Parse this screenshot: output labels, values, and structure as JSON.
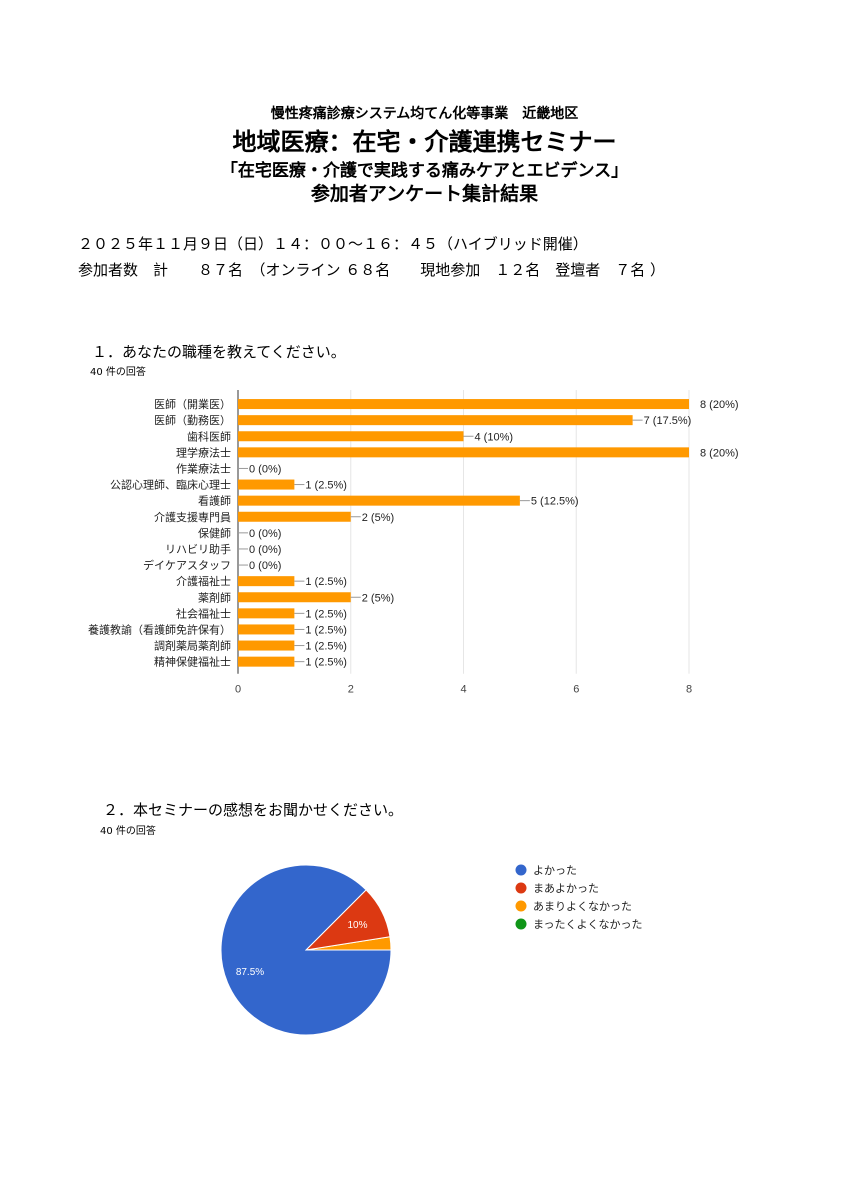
{
  "header": {
    "project": "慢性疼痛診療システム均てん化等事業　近畿地区",
    "title": "地域医療：在宅・介護連携セミナー",
    "subtitle": "「在宅医療・介護で実践する痛みケアとエビデンス」",
    "report": "参加者アンケート集計結果"
  },
  "info": {
    "date": "２０２５年１１月９日（日）１４：００～１６：４５（ハイブリッド開催）",
    "participants": "参加者数　計　　８７名　（オンライン ６８名　　現地参加　１２名　登壇者　７名 ）"
  },
  "q1": {
    "question": "１．あなたの職種を教えてください。",
    "responses": "40 件の回答"
  },
  "q2": {
    "question": "２．本セミナーの感想をお聞かせください。",
    "responses": "40 件の回答"
  },
  "chart_data": [
    {
      "type": "bar",
      "orientation": "horizontal",
      "categories": [
        "医師（開業医）",
        "医師（勤務医）",
        "歯科医師",
        "理学療法士",
        "作業療法士",
        "公認心理師、臨床心理士",
        "看護師",
        "介護支援専門員",
        "保健師",
        "リハビリ助手",
        "デイケアスタッフ",
        "介護福祉士",
        "薬剤師",
        "社会福祉士",
        "養護教諭（看護師免許保有）",
        "調剤薬局薬剤師",
        "精神保健福祉士"
      ],
      "values": [
        8,
        7,
        4,
        8,
        0,
        1,
        5,
        2,
        0,
        0,
        0,
        1,
        2,
        1,
        1,
        1,
        1
      ],
      "labels": [
        "8 (20%)",
        "7 (17.5%)",
        "4 (10%)",
        "8 (20%)",
        "0 (0%)",
        "1 (2.5%)",
        "5 (12.5%)",
        "2 (5%)",
        "0 (0%)",
        "0 (0%)",
        "0 (0%)",
        "1 (2.5%)",
        "2 (5%)",
        "1 (2.5%)",
        "1 (2.5%)",
        "1 (2.5%)",
        "1 (2.5%)"
      ],
      "xlim": [
        0,
        8
      ],
      "xticks": [
        "0",
        "2",
        "4",
        "6",
        "8"
      ],
      "grid": true,
      "color": "#ff9900"
    },
    {
      "type": "pie",
      "categories": [
        "よかった",
        "まあよかった",
        "あまりよくなかった",
        "まったくよくなかった"
      ],
      "values": [
        87.5,
        10,
        2.5,
        0
      ],
      "slice_labels": [
        "87.5%",
        "10%",
        "",
        ""
      ],
      "colors": [
        "#3366cc",
        "#dc3912",
        "#ff9900",
        "#109618"
      ],
      "legend": "right"
    }
  ]
}
